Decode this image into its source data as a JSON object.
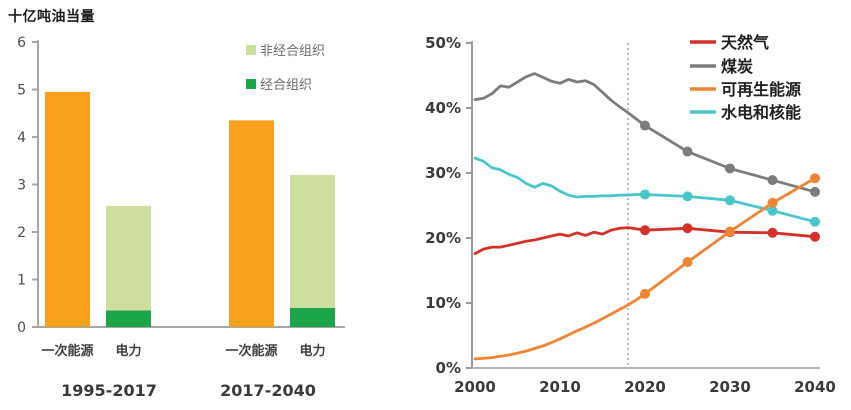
{
  "chart_data": [
    {
      "type": "bar",
      "title": "十亿吨油当量",
      "ylabel": "",
      "ylim": [
        0,
        6
      ],
      "yticks": [
        "0",
        "1",
        "2",
        "3",
        "4",
        "5",
        "6"
      ],
      "grid": false,
      "legend_position": "top-right",
      "legend": [
        {
          "label": "非经合组织",
          "color": "#cdde9f"
        },
        {
          "label": "经合组织",
          "color": "#1ba64b"
        }
      ],
      "groups": [
        {
          "label": "1995-2017",
          "bars": [
            {
              "category": "一次能源",
              "total": 4.95,
              "stack": [
                {
                  "name": "一次能源",
                  "value": 4.95,
                  "color": "#f9a11c"
                }
              ]
            },
            {
              "category": "电力",
              "total": 2.55,
              "stack": [
                {
                  "name": "经合组织",
                  "value": 0.35,
                  "color": "#1ba64b"
                },
                {
                  "name": "非经合组织",
                  "value": 2.2,
                  "color": "#cdde9f"
                }
              ]
            }
          ]
        },
        {
          "label": "2017-2040",
          "bars": [
            {
              "category": "一次能源",
              "total": 4.35,
              "stack": [
                {
                  "name": "一次能源",
                  "value": 4.35,
                  "color": "#f9a11c"
                }
              ]
            },
            {
              "category": "电力",
              "total": 3.2,
              "stack": [
                {
                  "name": "经合组织",
                  "value": 0.4,
                  "color": "#1ba64b"
                },
                {
                  "name": "非经合组织",
                  "value": 2.8,
                  "color": "#cdde9f"
                }
              ]
            }
          ]
        }
      ],
      "axis_color": "#a6a6a6",
      "tick_label_color": "#4d4d4d",
      "category_label_color": "#404040",
      "group_label_color": "#3a3a3a",
      "legend_text_color": "#6b6b6b"
    },
    {
      "type": "line",
      "title": "",
      "ylim": [
        0,
        50
      ],
      "ytick_labels": [
        "0%",
        "10%",
        "20%",
        "30%",
        "40%",
        "50%"
      ],
      "xlim": [
        2000,
        2040
      ],
      "xticks": [
        "2000",
        "2010",
        "2020",
        "2030",
        "2040"
      ],
      "grid": false,
      "reference_line_year": 2018,
      "marker_years": [
        2020,
        2025,
        2030,
        2035,
        2040
      ],
      "legend_position": "top-right",
      "legend": [
        {
          "label": "天然气",
          "color": "#d2322a"
        },
        {
          "label": "煤炭",
          "color": "#7c7c7c"
        },
        {
          "label": "可再生能源",
          "color": "#ef8532"
        },
        {
          "label": "水电和核能",
          "color": "#48c6ca"
        }
      ],
      "series": [
        {
          "name": "天然气",
          "color": "#d2322a",
          "points": [
            [
              2000,
              17.6
            ],
            [
              2001,
              18.3
            ],
            [
              2002,
              18.6
            ],
            [
              2003,
              18.6
            ],
            [
              2004,
              18.9
            ],
            [
              2005,
              19.2
            ],
            [
              2006,
              19.5
            ],
            [
              2007,
              19.7
            ],
            [
              2008,
              20.0
            ],
            [
              2009,
              20.3
            ],
            [
              2010,
              20.6
            ],
            [
              2011,
              20.3
            ],
            [
              2012,
              20.8
            ],
            [
              2013,
              20.4
            ],
            [
              2014,
              20.9
            ],
            [
              2015,
              20.6
            ],
            [
              2016,
              21.2
            ],
            [
              2017,
              21.5
            ],
            [
              2018,
              21.6
            ],
            [
              2019,
              21.4
            ],
            [
              2020,
              21.2
            ],
            [
              2025,
              21.5
            ],
            [
              2030,
              20.9
            ],
            [
              2035,
              20.8
            ],
            [
              2040,
              20.2
            ]
          ]
        },
        {
          "name": "煤炭",
          "color": "#7c7c7c",
          "points": [
            [
              2000,
              41.3
            ],
            [
              2001,
              41.5
            ],
            [
              2002,
              42.2
            ],
            [
              2003,
              43.4
            ],
            [
              2004,
              43.2
            ],
            [
              2005,
              44.0
            ],
            [
              2006,
              44.8
            ],
            [
              2007,
              45.3
            ],
            [
              2008,
              44.7
            ],
            [
              2009,
              44.1
            ],
            [
              2010,
              43.8
            ],
            [
              2011,
              44.4
            ],
            [
              2012,
              44.0
            ],
            [
              2013,
              44.2
            ],
            [
              2014,
              43.6
            ],
            [
              2015,
              42.4
            ],
            [
              2016,
              41.2
            ],
            [
              2017,
              40.2
            ],
            [
              2018,
              39.3
            ],
            [
              2019,
              38.3
            ],
            [
              2020,
              37.3
            ],
            [
              2025,
              33.3
            ],
            [
              2030,
              30.7
            ],
            [
              2035,
              28.9
            ],
            [
              2040,
              27.1
            ]
          ]
        },
        {
          "name": "可再生能源",
          "color": "#ef8532",
          "points": [
            [
              2000,
              1.4
            ],
            [
              2001,
              1.5
            ],
            [
              2002,
              1.6
            ],
            [
              2003,
              1.8
            ],
            [
              2004,
              2.0
            ],
            [
              2005,
              2.3
            ],
            [
              2006,
              2.6
            ],
            [
              2007,
              3.0
            ],
            [
              2008,
              3.4
            ],
            [
              2009,
              3.9
            ],
            [
              2010,
              4.5
            ],
            [
              2011,
              5.1
            ],
            [
              2012,
              5.7
            ],
            [
              2013,
              6.3
            ],
            [
              2014,
              6.9
            ],
            [
              2015,
              7.6
            ],
            [
              2016,
              8.3
            ],
            [
              2017,
              9.0
            ],
            [
              2018,
              9.7
            ],
            [
              2019,
              10.5
            ],
            [
              2020,
              11.4
            ],
            [
              2025,
              16.3
            ],
            [
              2030,
              21.0
            ],
            [
              2035,
              25.4
            ],
            [
              2040,
              29.2
            ]
          ]
        },
        {
          "name": "水电和核能",
          "color": "#48c6ca",
          "points": [
            [
              2000,
              32.3
            ],
            [
              2001,
              31.8
            ],
            [
              2002,
              30.8
            ],
            [
              2003,
              30.5
            ],
            [
              2004,
              29.8
            ],
            [
              2005,
              29.3
            ],
            [
              2006,
              28.4
            ],
            [
              2007,
              27.8
            ],
            [
              2008,
              28.4
            ],
            [
              2009,
              28.0
            ],
            [
              2010,
              27.2
            ],
            [
              2011,
              26.6
            ],
            [
              2012,
              26.3
            ],
            [
              2013,
              26.4
            ],
            [
              2014,
              26.4
            ],
            [
              2015,
              26.5
            ],
            [
              2016,
              26.5
            ],
            [
              2017,
              26.6
            ],
            [
              2018,
              26.6
            ],
            [
              2019,
              26.7
            ],
            [
              2020,
              26.7
            ],
            [
              2025,
              26.4
            ],
            [
              2030,
              25.8
            ],
            [
              2035,
              24.2
            ],
            [
              2040,
              22.5
            ]
          ]
        }
      ],
      "axis_color": "#b3b3b3",
      "tick_label_color": "#3a3a3a",
      "reference_line_color": "#8c8c8c",
      "legend_text_color": "#1f1f1f"
    }
  ]
}
